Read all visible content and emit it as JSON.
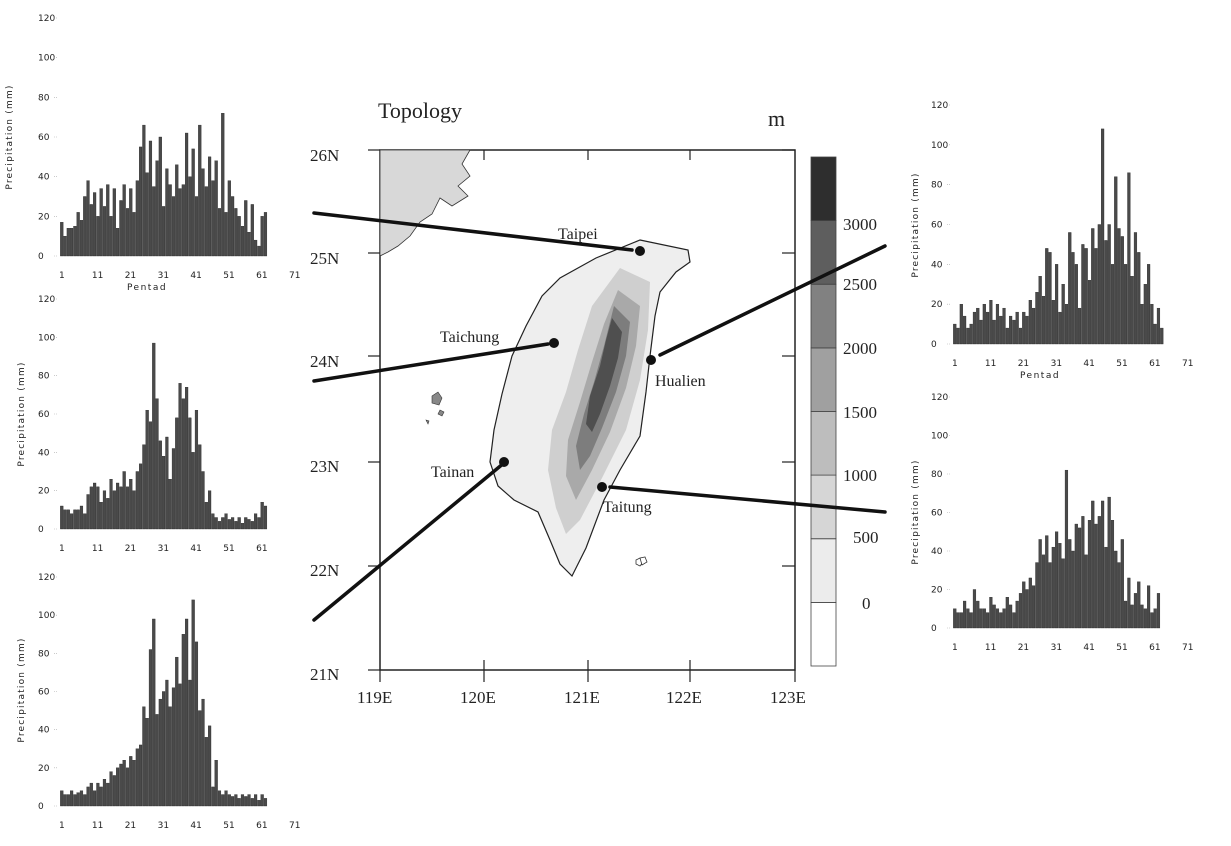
{
  "chart_data": [
    {
      "type": "bar",
      "station": "Taipei",
      "ylabel": "Precipitation (mm)",
      "xlabel": "Pentad",
      "ylim": [
        0,
        120
      ],
      "yticks": [
        "0",
        "20",
        "40",
        "60",
        "80",
        "100",
        "120"
      ],
      "xticks": [
        "1",
        "11",
        "21",
        "31",
        "41",
        "51",
        "61",
        "71"
      ],
      "x_start": 1,
      "values": [
        17,
        10,
        14,
        14,
        15,
        22,
        18,
        30,
        38,
        26,
        32,
        20,
        34,
        25,
        36,
        20,
        34,
        14,
        28,
        36,
        24,
        34,
        22,
        38,
        55,
        66,
        42,
        58,
        35,
        48,
        60,
        25,
        44,
        36,
        30,
        46,
        34,
        36,
        62,
        40,
        54,
        30,
        66,
        44,
        35,
        50,
        38,
        48,
        24,
        72,
        22,
        38,
        30,
        24,
        20,
        15,
        28,
        12,
        26,
        8,
        5,
        20,
        22
      ],
      "color": "#4a4a4a"
    },
    {
      "type": "bar",
      "station": "Taichung",
      "ylabel": "Precipitation (mm)",
      "xlabel": "",
      "ylim": [
        0,
        120
      ],
      "yticks": [
        "0",
        "20",
        "40",
        "60",
        "80",
        "100",
        "120"
      ],
      "xticks": [
        "1",
        "11",
        "21",
        "31",
        "41",
        "51",
        "61"
      ],
      "x_start": 1,
      "values": [
        12,
        10,
        10,
        8,
        10,
        10,
        12,
        8,
        18,
        22,
        24,
        22,
        14,
        20,
        16,
        26,
        20,
        24,
        22,
        30,
        22,
        26,
        20,
        30,
        34,
        44,
        62,
        56,
        97,
        68,
        46,
        38,
        48,
        26,
        42,
        58,
        76,
        68,
        74,
        58,
        40,
        62,
        44,
        30,
        14,
        20,
        8,
        6,
        4,
        6,
        8,
        5,
        6,
        4,
        6,
        3,
        6,
        5,
        4,
        8,
        6,
        14,
        12
      ],
      "color": "#4a4a4a"
    },
    {
      "type": "bar",
      "station": "Tainan",
      "ylabel": "Precipitation (mm)",
      "xlabel": "",
      "ylim": [
        0,
        120
      ],
      "yticks": [
        "0",
        "20",
        "40",
        "60",
        "80",
        "100",
        "120"
      ],
      "xticks": [
        "1",
        "11",
        "21",
        "31",
        "41",
        "51",
        "61",
        "71"
      ],
      "x_start": 1,
      "values": [
        8,
        6,
        6,
        8,
        6,
        7,
        8,
        6,
        10,
        12,
        8,
        12,
        10,
        14,
        12,
        18,
        16,
        20,
        22,
        24,
        20,
        26,
        24,
        30,
        32,
        52,
        46,
        82,
        98,
        48,
        56,
        60,
        66,
        52,
        62,
        78,
        64,
        90,
        98,
        66,
        108,
        86,
        50,
        56,
        36,
        42,
        10,
        24,
        8,
        6,
        8,
        6,
        5,
        6,
        4,
        6,
        5,
        6,
        4,
        6,
        3,
        6,
        4
      ],
      "color": "#4a4a4a"
    },
    {
      "type": "bar",
      "station": "Hualien",
      "ylabel": "Precipitation (mm)",
      "xlabel": "Pentad",
      "ylim": [
        0,
        120
      ],
      "yticks": [
        "0",
        "20",
        "40",
        "60",
        "80",
        "100",
        "120"
      ],
      "xticks": [
        "1",
        "11",
        "21",
        "31",
        "41",
        "51",
        "61",
        "71"
      ],
      "x_start": 1,
      "values": [
        10,
        8,
        20,
        14,
        8,
        10,
        16,
        18,
        12,
        20,
        16,
        22,
        12,
        20,
        14,
        18,
        8,
        14,
        12,
        16,
        8,
        16,
        14,
        22,
        18,
        26,
        34,
        24,
        48,
        46,
        22,
        40,
        16,
        30,
        20,
        56,
        46,
        40,
        18,
        50,
        48,
        32,
        58,
        48,
        60,
        108,
        52,
        60,
        40,
        84,
        58,
        54,
        40,
        86,
        34,
        56,
        46,
        20,
        30,
        40,
        20,
        10,
        18,
        8
      ],
      "color": "#4a4a4a"
    },
    {
      "type": "bar",
      "station": "Taitung",
      "ylabel": "Precipitation (mm)",
      "xlabel": "",
      "ylim": [
        0,
        120
      ],
      "yticks": [
        "0",
        "20",
        "40",
        "60",
        "80",
        "100",
        "120"
      ],
      "xticks": [
        "1",
        "11",
        "21",
        "31",
        "41",
        "51",
        "61",
        "71"
      ],
      "x_start": 1,
      "values": [
        10,
        8,
        8,
        14,
        10,
        8,
        20,
        14,
        10,
        10,
        8,
        16,
        12,
        10,
        8,
        10,
        16,
        12,
        8,
        14,
        18,
        24,
        20,
        26,
        22,
        34,
        46,
        38,
        48,
        34,
        42,
        50,
        44,
        36,
        82,
        46,
        40,
        54,
        52,
        58,
        38,
        56,
        66,
        54,
        58,
        66,
        42,
        68,
        56,
        40,
        34,
        46,
        14,
        26,
        12,
        18,
        24,
        12,
        10,
        22,
        8,
        10,
        18
      ],
      "color": "#4a4a4a"
    },
    {
      "type": "heatmap",
      "title": "Topology",
      "unit": "m",
      "lat_ticks": [
        "26N",
        "25N",
        "24N",
        "23N",
        "22N",
        "21N"
      ],
      "lon_ticks": [
        "119E",
        "120E",
        "121E",
        "122E",
        "123E"
      ],
      "colorbar_ticks": [
        "3000",
        "2500",
        "2000",
        "1500",
        "1000",
        "500",
        "0"
      ],
      "colorbar_colors": [
        "#ffffff",
        "#ececec",
        "#d6d6d6",
        "#bdbdbd",
        "#a0a0a0",
        "#818181",
        "#5e5e5e",
        "#2e2e2e"
      ],
      "stations": [
        {
          "name": "Taipei",
          "lon": 121.52,
          "lat": 25.04
        },
        {
          "name": "Taichung",
          "lon": 120.68,
          "lat": 24.14
        },
        {
          "name": "Hualien",
          "lon": 121.61,
          "lat": 23.98
        },
        {
          "name": "Tainan",
          "lon": 120.2,
          "lat": 23.0
        },
        {
          "name": "Taitung",
          "lon": 121.15,
          "lat": 22.75
        }
      ]
    }
  ]
}
